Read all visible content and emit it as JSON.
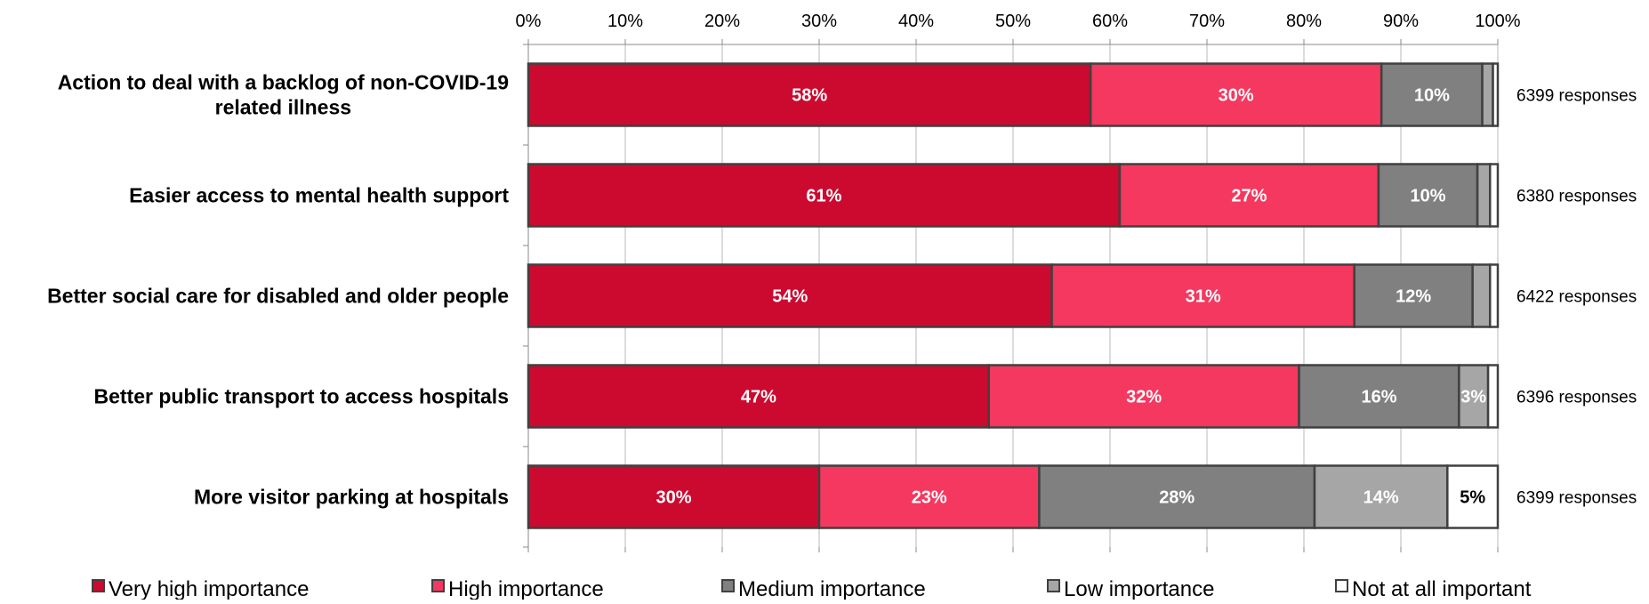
{
  "chart_data": {
    "type": "bar",
    "orientation": "horizontal",
    "stacked": true,
    "xlim": [
      0,
      100
    ],
    "x_ticks": [
      "0%",
      "10%",
      "20%",
      "30%",
      "40%",
      "50%",
      "60%",
      "70%",
      "80%",
      "90%",
      "100%"
    ],
    "x_tick_values": [
      0,
      10,
      20,
      30,
      40,
      50,
      60,
      70,
      80,
      90,
      100
    ],
    "grid": true,
    "legend_position": "bottom",
    "categories": [
      [
        "Action to deal with a backlog of non-COVID-19",
        "related illness"
      ],
      [
        "Easier access to mental health support"
      ],
      [
        "Better social care for disabled and older people"
      ],
      [
        "Better public transport to access hospitals"
      ],
      [
        "More visitor parking at hospitals"
      ]
    ],
    "responses": [
      "6399 responses",
      "6380 responses",
      "6422 responses",
      "6396 responses",
      "6399 responses"
    ],
    "series": [
      {
        "name": "Very high importance",
        "color": "#cc0a2f",
        "label_color": "#ffffff",
        "values": [
          58,
          61,
          54,
          47.5,
          30
        ],
        "labels": [
          "58%",
          "61%",
          "54%",
          "47%",
          "30%"
        ]
      },
      {
        "name": "High importance",
        "color": "#f5385f",
        "label_color": "#ffffff",
        "values": [
          30,
          26.7,
          31.2,
          32,
          22.7
        ],
        "labels": [
          "30%",
          "27%",
          "31%",
          "32%",
          "23%"
        ]
      },
      {
        "name": "Medium importance",
        "color": "#808080",
        "label_color": "#ffffff",
        "values": [
          10.4,
          10.2,
          12.2,
          16.5,
          28.4
        ],
        "labels": [
          "10%",
          "10%",
          "12%",
          "16%",
          "28%"
        ]
      },
      {
        "name": "Low importance",
        "color": "#a6a6a6",
        "label_color": "#ffffff",
        "values": [
          1.1,
          1.3,
          1.8,
          3,
          13.7
        ],
        "labels": [
          "",
          "",
          "",
          "3%",
          "14%"
        ]
      },
      {
        "name": "Not at all important",
        "color": "#ffffff",
        "label_color": "#000000",
        "values": [
          0.5,
          0.8,
          0.8,
          1,
          5.2
        ],
        "labels": [
          "",
          "",
          "",
          "",
          "5%"
        ]
      }
    ]
  }
}
